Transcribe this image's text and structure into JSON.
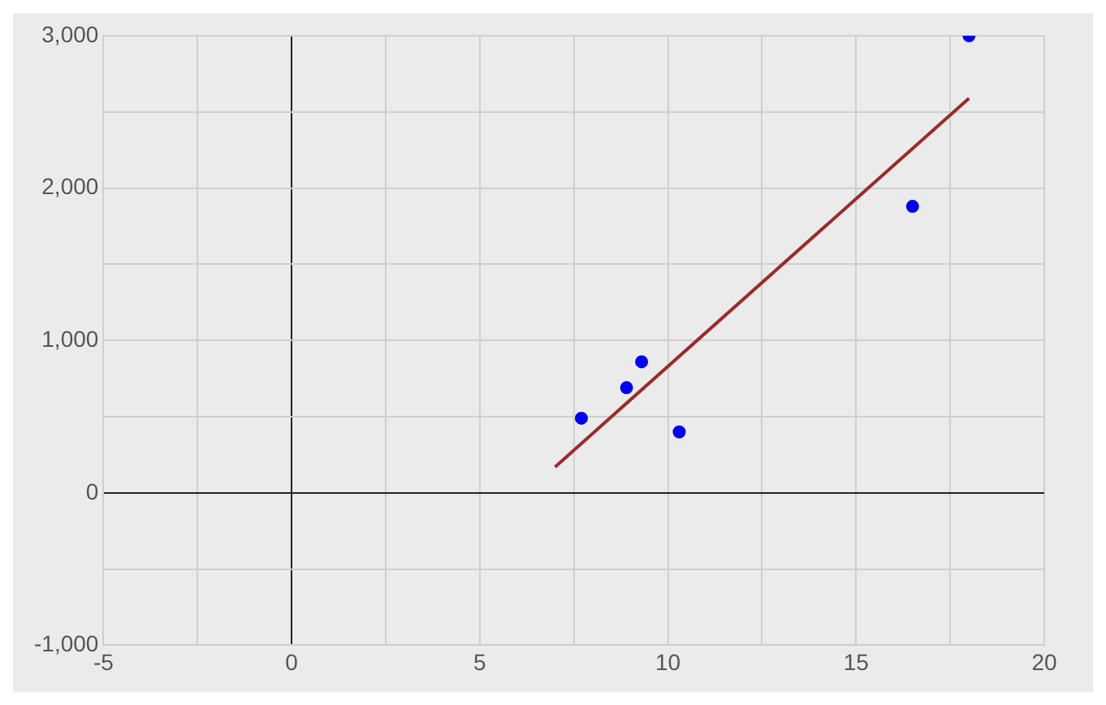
{
  "chart_data": {
    "type": "scatter",
    "xlim": [
      -5,
      20
    ],
    "ylim": [
      -1000,
      3000
    ],
    "xticks": [
      -5,
      {
        "value": -2.5,
        "label": null
      },
      0,
      {
        "value": 2.5,
        "label": null
      },
      5,
      {
        "value": 7.5,
        "label": null
      },
      10,
      {
        "value": 12.5,
        "label": null
      },
      15,
      {
        "value": 17.5,
        "label": null
      },
      20
    ],
    "yticks": [
      {
        "value": -1000,
        "label": "-1,000"
      },
      {
        "value": -500,
        "label": null
      },
      0,
      {
        "value": 500,
        "label": null
      },
      {
        "value": 1000,
        "label": "1,000"
      },
      {
        "value": 1500,
        "label": null
      },
      {
        "value": 2000,
        "label": "2,000"
      },
      {
        "value": 2500,
        "label": null
      },
      {
        "value": 3000,
        "label": "3,000"
      }
    ],
    "grid": true,
    "legend": false,
    "marker": "circle",
    "series": [
      {
        "type": "scatter",
        "color": "#0000ee",
        "x": [
          7.7,
          8.9,
          9.3,
          10.3,
          16.5,
          18
        ],
        "values": [
          490,
          690,
          860,
          400,
          1880,
          3000
        ]
      },
      {
        "type": "line",
        "color": "#9b2a2a",
        "x": [
          7,
          18
        ],
        "values": [
          170,
          2590
        ],
        "marker": "none",
        "line_style": "solid"
      }
    ]
  }
}
